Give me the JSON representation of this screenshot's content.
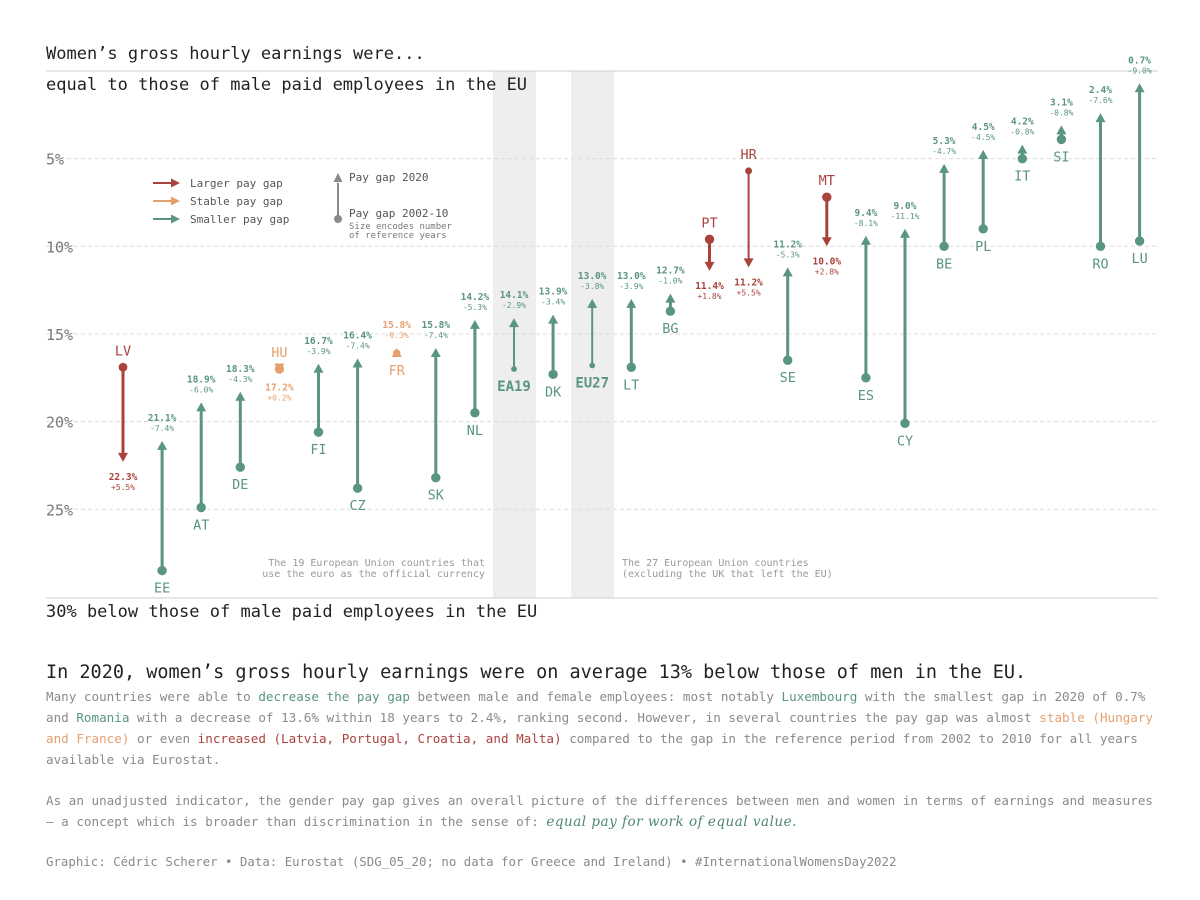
{
  "header": {
    "title_line1": "Women’s gross hourly earnings were...",
    "title_line2": "equal to those of male paid employees in the EU",
    "bottom_label": "30% below those of male paid employees in the EU"
  },
  "colors": {
    "larger": "#a8433c",
    "stable": "#e6a070",
    "smaller": "#5a9484",
    "legend_grey": "#8a8a8a",
    "grid": "#dcdcdc",
    "band": "#eeeeee"
  },
  "legend": {
    "larger": "Larger pay gap",
    "stable": "Stable pay gap",
    "smaller": "Smaller pay gap",
    "pay_gap_2020": "Pay gap 2020",
    "pay_gap_ref": "Pay gap 2002-10",
    "size_note_1": "Size encodes number",
    "size_note_2": "of reference years"
  },
  "annotations": {
    "ea19_1": "The 19 European Union countries that",
    "ea19_2": "use the euro as the official currency",
    "eu27_1": "The 27 European Union countries",
    "eu27_2": "(excluding the UK that left the EU)"
  },
  "chart_data": {
    "type": "arrow",
    "y_axis": {
      "ticks": [
        5,
        10,
        15,
        20,
        25
      ],
      "tick_labels": [
        "5%",
        "10%",
        "15%",
        "20%",
        "25%"
      ],
      "range": [
        0,
        30
      ],
      "grid": true
    },
    "countries": [
      {
        "code": "LV",
        "ref": 16.9,
        "gap2020": 22.3,
        "change": "+5.5%",
        "status": "larger",
        "years": 8
      },
      {
        "code": "EE",
        "ref": 28.5,
        "gap2020": 21.1,
        "change": "-7.4%",
        "status": "smaller",
        "years": 9
      },
      {
        "code": "AT",
        "ref": 24.9,
        "gap2020": 18.9,
        "change": "-6.0%",
        "status": "smaller",
        "years": 9
      },
      {
        "code": "DE",
        "ref": 22.6,
        "gap2020": 18.3,
        "change": "-4.3%",
        "status": "smaller",
        "years": 9
      },
      {
        "code": "HU",
        "ref": 17.0,
        "gap2020": 17.2,
        "change": "+0.2%",
        "status": "stable",
        "years": 9
      },
      {
        "code": "FI",
        "ref": 20.6,
        "gap2020": 16.7,
        "change": "-3.9%",
        "status": "smaller",
        "years": 9
      },
      {
        "code": "CZ",
        "ref": 23.8,
        "gap2020": 16.4,
        "change": "-7.4%",
        "status": "smaller",
        "years": 9
      },
      {
        "code": "FR",
        "ref": 16.1,
        "gap2020": 15.8,
        "change": "-0.3%",
        "status": "stable",
        "years": 6
      },
      {
        "code": "SK",
        "ref": 23.2,
        "gap2020": 15.8,
        "change": "-7.4%",
        "status": "smaller",
        "years": 9
      },
      {
        "code": "NL",
        "ref": 19.5,
        "gap2020": 14.2,
        "change": "-5.3%",
        "status": "smaller",
        "years": 9
      },
      {
        "code": "EA19",
        "ref": 17.0,
        "gap2020": 14.1,
        "change": "-2.9%",
        "status": "smaller",
        "years": 3
      },
      {
        "code": "DK",
        "ref": 17.3,
        "gap2020": 13.9,
        "change": "-3.4%",
        "status": "smaller",
        "years": 9
      },
      {
        "code": "EU27",
        "ref": 16.8,
        "gap2020": 13.0,
        "change": "-3.8%",
        "status": "smaller",
        "years": 3
      },
      {
        "code": "LT",
        "ref": 16.9,
        "gap2020": 13.0,
        "change": "-3.9%",
        "status": "smaller",
        "years": 9
      },
      {
        "code": "BG",
        "ref": 13.7,
        "gap2020": 12.7,
        "change": "-1.0%",
        "status": "smaller",
        "years": 9
      },
      {
        "code": "PT",
        "ref": 9.6,
        "gap2020": 11.4,
        "change": "+1.8%",
        "status": "larger",
        "years": 9
      },
      {
        "code": "HR",
        "ref": 5.7,
        "gap2020": 11.2,
        "change": "+5.5%",
        "status": "larger",
        "years": 5
      },
      {
        "code": "SE",
        "ref": 16.5,
        "gap2020": 11.2,
        "change": "-5.3%",
        "status": "smaller",
        "years": 9
      },
      {
        "code": "MT",
        "ref": 7.2,
        "gap2020": 10.0,
        "change": "+2.8%",
        "status": "larger",
        "years": 9
      },
      {
        "code": "ES",
        "ref": 17.5,
        "gap2020": 9.4,
        "change": "-8.1%",
        "status": "smaller",
        "years": 9
      },
      {
        "code": "CY",
        "ref": 20.1,
        "gap2020": 9.0,
        "change": "-11.1%",
        "status": "smaller",
        "years": 9
      },
      {
        "code": "BE",
        "ref": 10.0,
        "gap2020": 5.3,
        "change": "-4.7%",
        "status": "smaller",
        "years": 9
      },
      {
        "code": "PL",
        "ref": 9.0,
        "gap2020": 4.5,
        "change": "-4.5%",
        "status": "smaller",
        "years": 9
      },
      {
        "code": "IT",
        "ref": 5.0,
        "gap2020": 4.2,
        "change": "-0.8%",
        "status": "smaller",
        "years": 9
      },
      {
        "code": "SI",
        "ref": 3.9,
        "gap2020": 3.1,
        "change": "-0.8%",
        "status": "smaller",
        "years": 9
      },
      {
        "code": "RO",
        "ref": 10.0,
        "gap2020": 2.4,
        "change": "-7.6%",
        "status": "smaller",
        "years": 9
      },
      {
        "code": "LU",
        "ref": 9.7,
        "gap2020": 0.7,
        "change": "-9.0%",
        "status": "smaller",
        "years": 9
      }
    ]
  },
  "text": {
    "headline": "In 2020, women’s gross hourly earnings were on average 13% below those of men in the EU.",
    "p1_a": "Many countries were able to ",
    "p1_b": "decrease the pay gap",
    "p1_c": " between male and female employees: most notably ",
    "p1_d": "Luxembourg",
    "p1_e": " with the smallest gap in 2020 of 0.7% and ",
    "p1_f": "Romania",
    "p1_g": " with a decrease of 13.6% within 18 years to 2.4%, ranking second. However, in several countries the pay gap was almost ",
    "p1_h": "stable (Hungary and France)",
    "p1_i": " or even ",
    "p1_j": "increased (Latvia, Portugal, Croatia, and Malta)",
    "p1_k": " compared to the gap in the reference period from 2002 to 2010 for all years available via Eurostat.",
    "p2_a": "As an unadjusted indicator, the gender pay gap gives an overall picture of the differences between men and women in terms of earnings and measures — a concept which is broader than discrimination in the sense of: ",
    "p2_b": "equal pay for work of equal value.",
    "caption": "Graphic: Cédric Scherer • Data: Eurostat (SDG_05_20; no data for Greece and Ireland) • #InternationalWomensDay2022"
  }
}
